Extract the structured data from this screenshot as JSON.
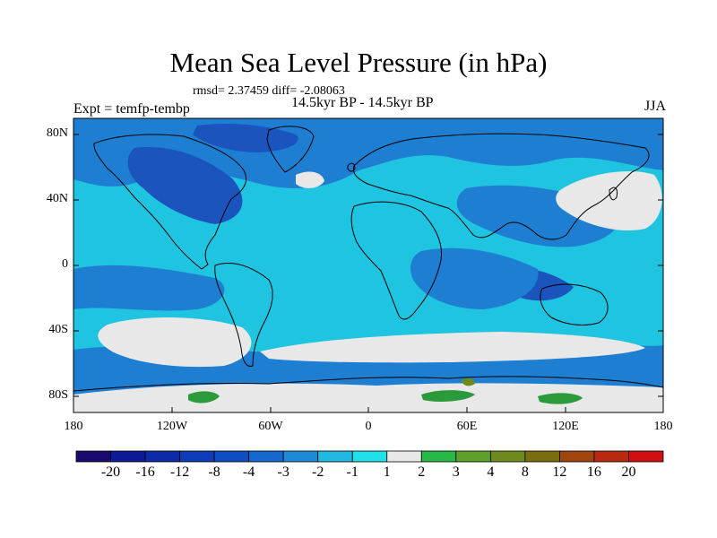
{
  "title": "Mean Sea Level Pressure (in hPa)",
  "stats": "rmsd= 2.37459 diff= -2.08063",
  "subtitle": "14.5kyr BP - 14.5kyr BP",
  "experiment": "Expt = temfp-tembp",
  "season": "JJA",
  "lat_labels": [
    "80N",
    "40N",
    "0",
    "40S",
    "80S"
  ],
  "lon_labels": [
    "180",
    "120W",
    "60W",
    "0",
    "60E",
    "120E",
    "180"
  ],
  "colorbar": {
    "labels": [
      "-20",
      "-16",
      "-12",
      "-8",
      "-4",
      "-3",
      "-2",
      "-1",
      "1",
      "2",
      "3",
      "4",
      "8",
      "12",
      "16",
      "20"
    ],
    "colors": [
      "#1a0a6e",
      "#0c1a96",
      "#0d2aa8",
      "#0e3bb8",
      "#0f4ec2",
      "#1668cc",
      "#1e8ad6",
      "#22b8e0",
      "#20e0e8",
      "#e8e8e8",
      "#28b848",
      "#5fa02c",
      "#6e8a1e",
      "#7a6c10",
      "#a04410",
      "#b82a10",
      "#d01010"
    ]
  },
  "map": {
    "projection": "cylindrical-equidistant",
    "lon_range": [
      -180,
      180
    ],
    "lat_range": [
      -90,
      90
    ],
    "ocean_fill": "#1ec4e0",
    "low_fill": "#1e7ed2",
    "deep_low_fill": "#1a54bc",
    "high_fill": "#e8e8e8",
    "positive_fill": "#2a9a3a"
  }
}
